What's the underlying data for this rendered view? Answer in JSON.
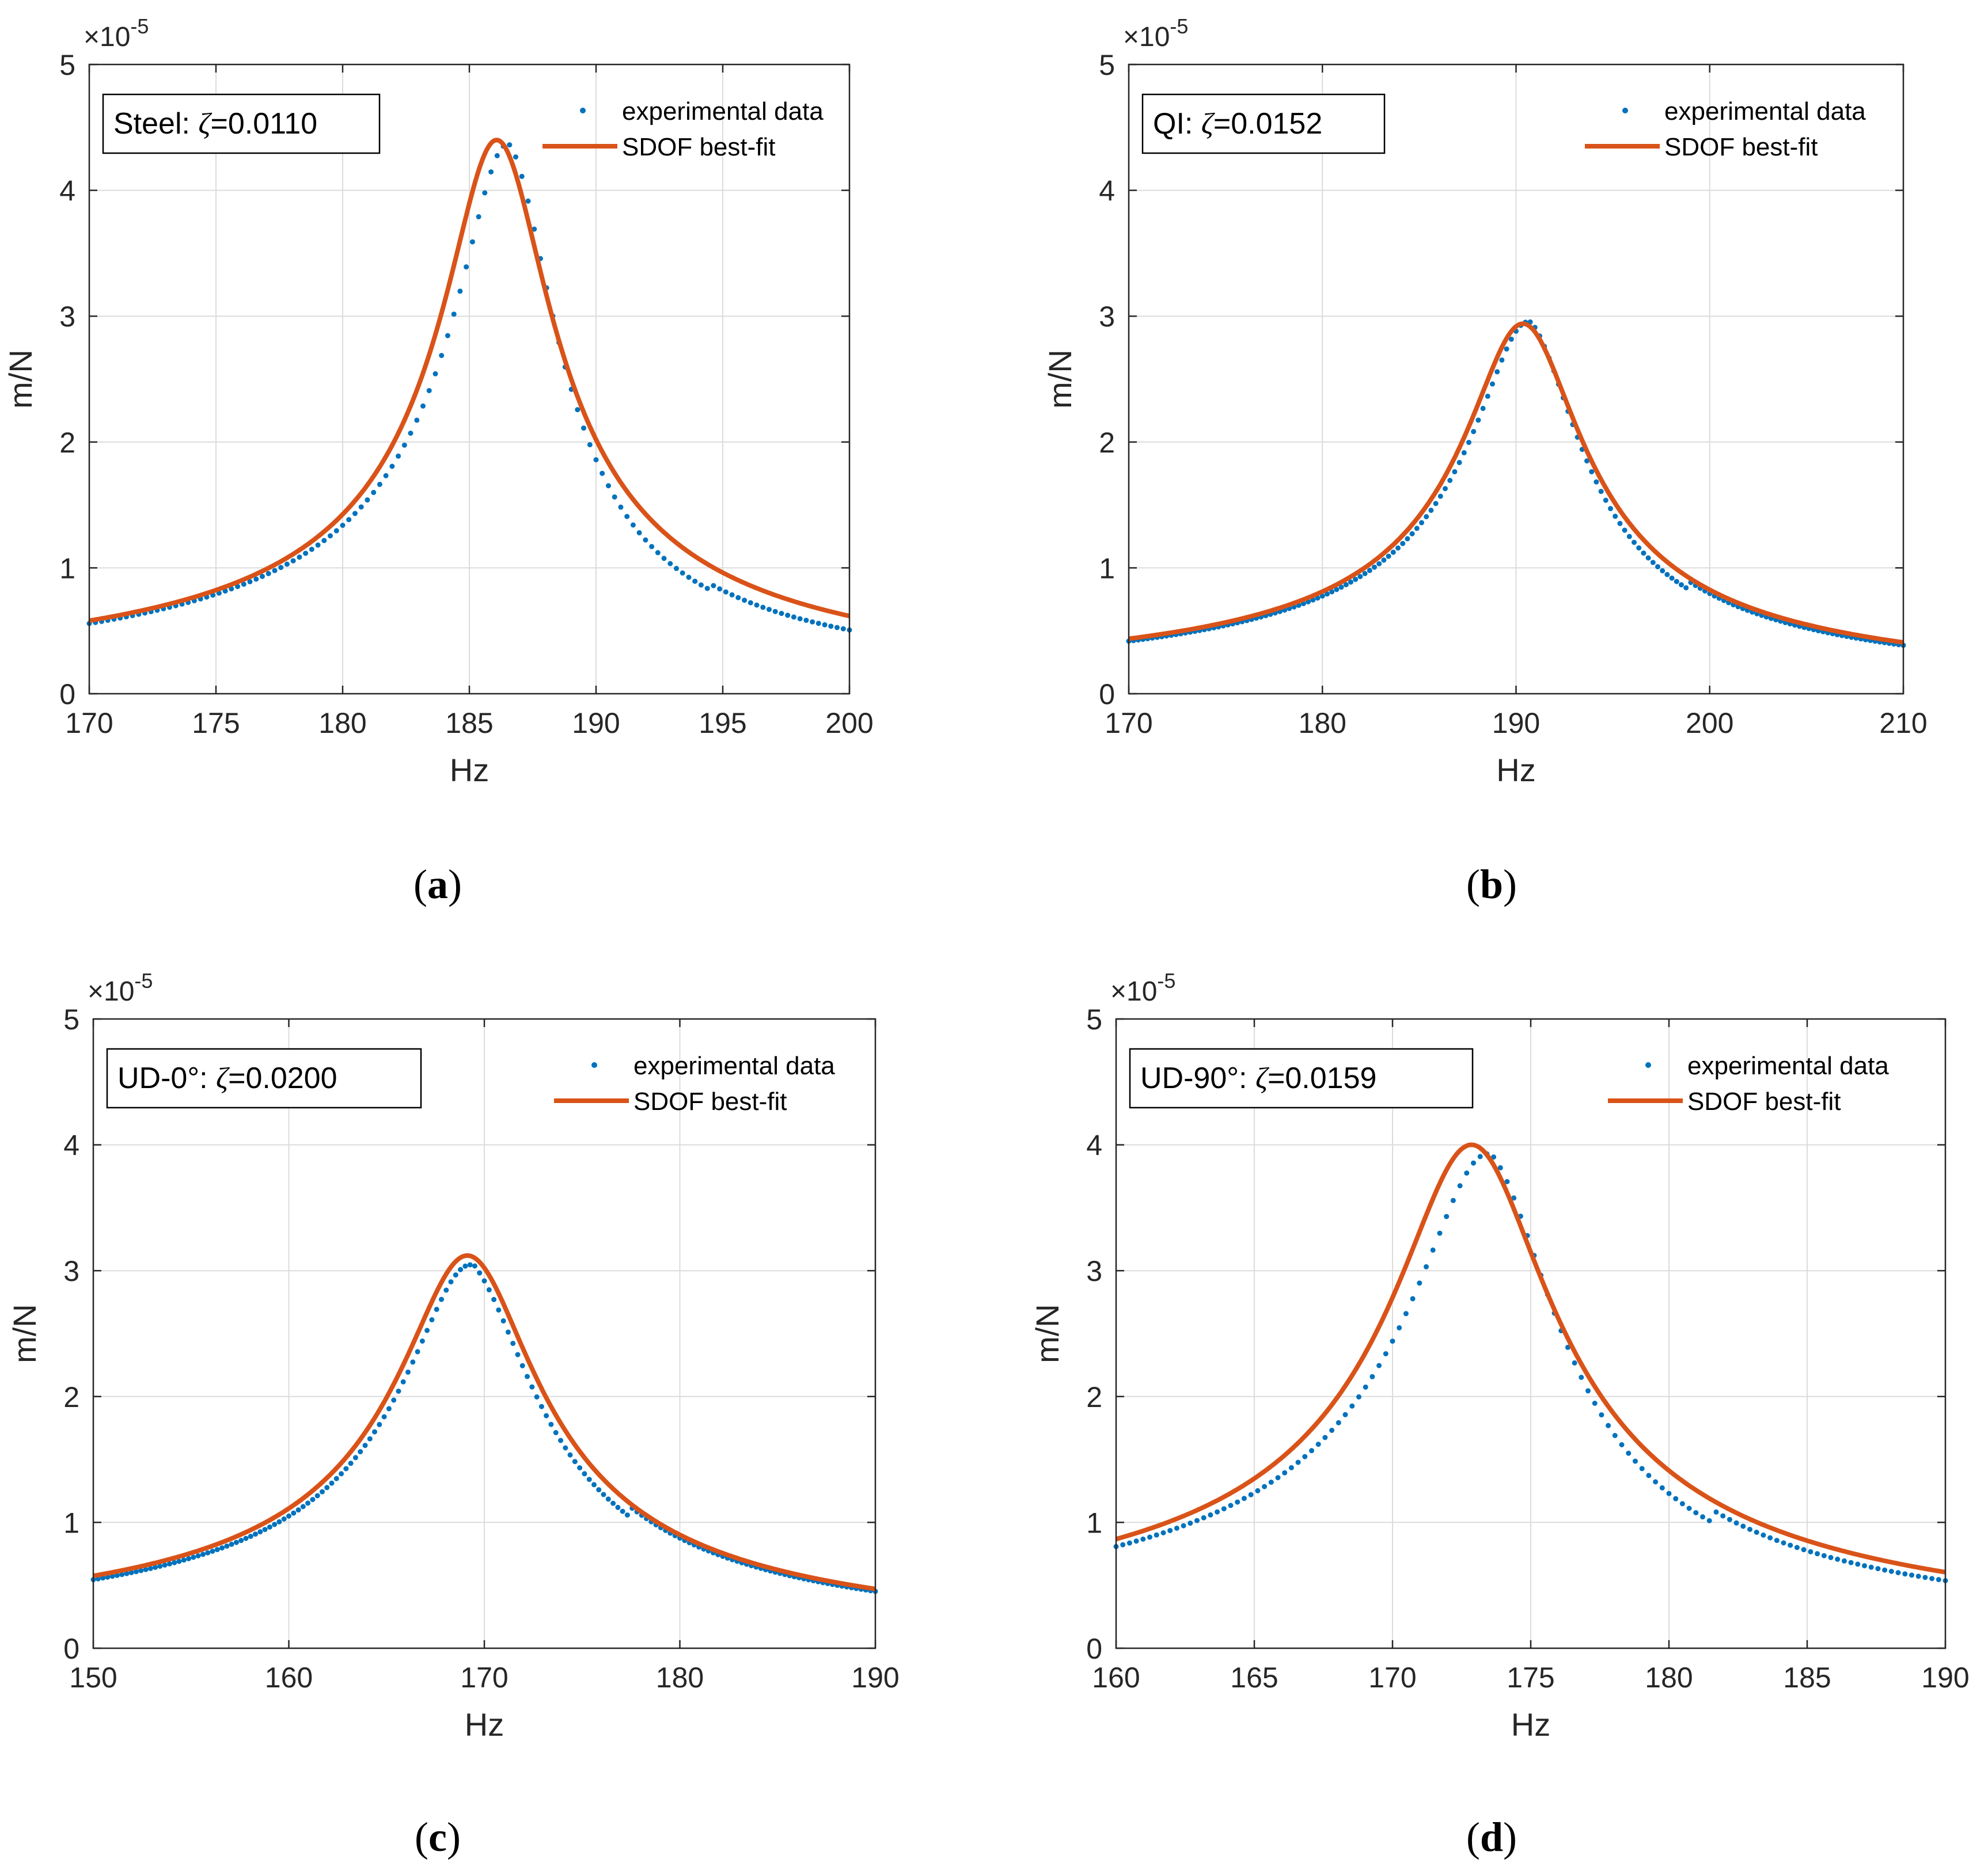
{
  "colors": {
    "experimental": "#0072bd",
    "fit": "#d95319",
    "axis": "#262626",
    "grid": "#dcdcdc"
  },
  "chart_data": [
    {
      "type": "scatter+line",
      "panel": "a",
      "caption_letter": "a",
      "annotation": {
        "prefix": "Steel: ",
        "symbol": "ζ",
        "value": "=0.0110"
      },
      "xlabel": "Hz",
      "ylabel": "m/N",
      "y_exponent": {
        "base": "×10",
        "power": "-5"
      },
      "xlim": [
        170,
        200
      ],
      "ylim": [
        0,
        5
      ],
      "xticks": [
        170,
        175,
        180,
        185,
        190,
        195,
        200
      ],
      "yticks": [
        0,
        1,
        2,
        3,
        4,
        5
      ],
      "grid": true,
      "legend_position": "top-right",
      "series": [
        {
          "name": "experimental data",
          "style": "dots",
          "fn": "sdof_skewed",
          "fn_params": {
            "f0": 186.6,
            "zeta": 0.0105,
            "peak": 4.36,
            "skew": 1.6,
            "rise": 0.55,
            "tail": 1.06
          },
          "x_range": [
            170,
            200
          ],
          "n_points": 124
        },
        {
          "name": "SDOF best-fit",
          "style": "line",
          "fn": "sdof",
          "fn_params": {
            "f0": 186.1,
            "zeta": 0.011,
            "peak": 4.4
          },
          "x_range": [
            170,
            200
          ]
        }
      ]
    },
    {
      "type": "scatter+line",
      "panel": "b",
      "caption_letter": "b",
      "annotation": {
        "prefix": "QI: ",
        "symbol": "ζ",
        "value": "=0.0152"
      },
      "xlabel": "Hz",
      "ylabel": "m/N",
      "y_exponent": {
        "base": "×10",
        "power": "-5"
      },
      "xlim": [
        170,
        210
      ],
      "ylim": [
        0,
        5
      ],
      "xticks": [
        170,
        180,
        190,
        200,
        210
      ],
      "yticks": [
        0,
        1,
        2,
        3,
        4,
        5
      ],
      "grid": true,
      "legend_position": "top-right",
      "series": [
        {
          "name": "experimental data",
          "style": "dots",
          "fn": "sdof_skewed",
          "fn_params": {
            "f0": 190.8,
            "zeta": 0.0145,
            "peak": 2.95,
            "skew": 0.8,
            "rise": 0.25,
            "tail": 1.08
          },
          "x_range": [
            170,
            210
          ],
          "n_points": 165
        },
        {
          "name": "SDOF best-fit",
          "style": "line",
          "fn": "sdof",
          "fn_params": {
            "f0": 190.4,
            "zeta": 0.0152,
            "peak": 2.94
          },
          "x_range": [
            170,
            210
          ]
        }
      ]
    },
    {
      "type": "scatter+line",
      "panel": "c",
      "caption_letter": "c",
      "annotation": {
        "prefix": "UD-0°: ",
        "symbol": "ζ",
        "value": "=0.0200"
      },
      "xlabel": "Hz",
      "ylabel": "m/N",
      "y_exponent": {
        "base": "×10",
        "power": "-5"
      },
      "xlim": [
        150,
        190
      ],
      "ylim": [
        0,
        5
      ],
      "xticks": [
        150,
        160,
        170,
        180,
        190
      ],
      "yticks": [
        0,
        1,
        2,
        3,
        4,
        5
      ],
      "grid": true,
      "legend_position": "top-right",
      "series": [
        {
          "name": "experimental data",
          "style": "dots",
          "fn": "sdof_skewed",
          "fn_params": {
            "f0": 169.5,
            "zeta": 0.0195,
            "peak": 3.04,
            "skew": 0.6,
            "rise": 0.15,
            "tail": 1.08
          },
          "x_range": [
            150,
            190
          ],
          "n_points": 165
        },
        {
          "name": "SDOF best-fit",
          "style": "line",
          "fn": "sdof",
          "fn_params": {
            "f0": 169.2,
            "zeta": 0.02,
            "peak": 3.12
          },
          "x_range": [
            150,
            190
          ]
        }
      ]
    },
    {
      "type": "scatter+line",
      "panel": "d",
      "caption_letter": "d",
      "annotation": {
        "prefix": "UD-90°: ",
        "symbol": "ζ",
        "value": "=0.0159"
      },
      "xlabel": "Hz",
      "ylabel": "m/N",
      "y_exponent": {
        "base": "×10",
        "power": "-5"
      },
      "xlim": [
        160,
        190
      ],
      "ylim": [
        0,
        5
      ],
      "xticks": [
        160,
        165,
        170,
        175,
        180,
        185,
        190
      ],
      "yticks": [
        0,
        1,
        2,
        3,
        4,
        5
      ],
      "grid": true,
      "legend_position": "top-right",
      "series": [
        {
          "name": "experimental data",
          "style": "dots",
          "fn": "sdof_skewed",
          "fn_params": {
            "f0": 173.6,
            "zeta": 0.0152,
            "peak": 3.92,
            "skew": 1.3,
            "rise": 0.4,
            "tail": 1.1
          },
          "x_range": [
            160,
            190
          ],
          "n_points": 124
        },
        {
          "name": "SDOF best-fit",
          "style": "line",
          "fn": "sdof",
          "fn_params": {
            "f0": 172.9,
            "zeta": 0.0159,
            "peak": 4.0
          },
          "x_range": [
            160,
            190
          ]
        }
      ]
    }
  ]
}
